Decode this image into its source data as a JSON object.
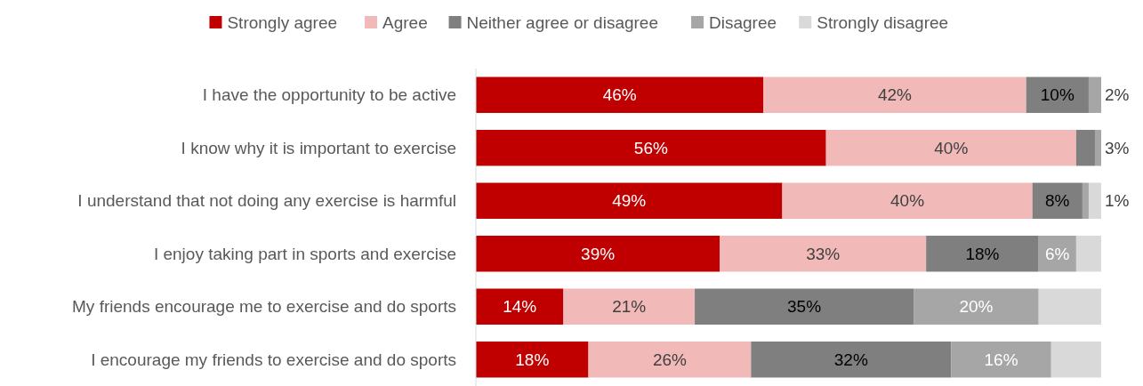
{
  "chart_data": {
    "type": "bar",
    "orientation": "horizontal",
    "stacked": true,
    "legend": "top",
    "categories": [
      "I have the opportunity to be active",
      "I know why it is important to exercise",
      "I understand that not doing any exercise is harmful",
      "I enjoy taking part in sports and exercise",
      "My friends encourage me to exercise and do sports",
      "I encourage my friends to exercise and do sports"
    ],
    "series": [
      {
        "name": "Strongly agree",
        "color": "#c00000",
        "values": [
          46,
          56,
          49,
          39,
          14,
          18
        ],
        "value_labels": [
          "46%",
          "56%",
          "49%",
          "39%",
          "14%",
          "18%"
        ]
      },
      {
        "name": "Agree",
        "color": "#f2b9b9",
        "values": [
          42,
          40,
          40,
          33,
          21,
          26
        ],
        "value_labels": [
          "42%",
          "40%",
          "40%",
          "33%",
          "21%",
          "26%"
        ]
      },
      {
        "name": "Neither agree or disagree",
        "color": "#7f7f7f",
        "values": [
          10,
          3,
          8,
          18,
          35,
          32
        ],
        "value_labels": [
          "10%",
          "3%",
          "8%",
          "18%",
          "35%",
          "32%"
        ]
      },
      {
        "name": "Disagree",
        "color": "#a6a6a6",
        "values": [
          2,
          1,
          1,
          6,
          20,
          16
        ],
        "value_labels": [
          "2%",
          null,
          "1%",
          "6%",
          "20%",
          "16%"
        ]
      },
      {
        "name": "Strongly disagree",
        "color": "#d9d9d9",
        "values": [
          0,
          0,
          2,
          4,
          10,
          8
        ],
        "value_labels": [
          null,
          null,
          null,
          null,
          null,
          null
        ]
      }
    ]
  }
}
